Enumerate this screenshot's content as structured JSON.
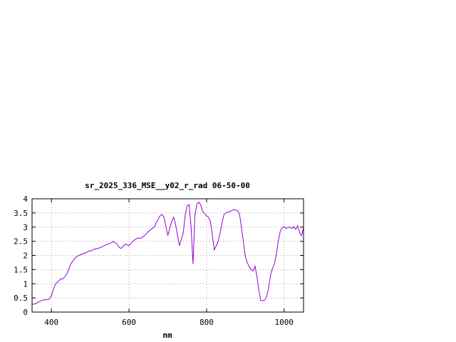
{
  "chart_data": {
    "type": "line",
    "title": "sr_2025_336_MSE__y02_r_rad 06-50-00",
    "xlabel": "nm",
    "ylabel": "",
    "xlim": [
      350,
      1050
    ],
    "ylim": [
      0,
      4
    ],
    "x_ticks": [
      400,
      600,
      800,
      1000
    ],
    "y_ticks": [
      0,
      0.5,
      1,
      1.5,
      2,
      2.5,
      3,
      3.5,
      4
    ],
    "x_tick_labels": [
      "400",
      "600",
      "800",
      "1000"
    ],
    "y_tick_labels": [
      "0",
      "0.5",
      "1",
      "1.5",
      "2",
      "2.5",
      "3",
      "3.5",
      "4"
    ],
    "grid": true,
    "line_color": "#9400d3",
    "series": [
      {
        "x": [
          350,
          360,
          370,
          380,
          390,
          395,
          400,
          405,
          410,
          420,
          425,
          430,
          440,
          450,
          460,
          470,
          480,
          490,
          495,
          500,
          510,
          520,
          530,
          540,
          550,
          555,
          560,
          570,
          575,
          580,
          590,
          600,
          610,
          620,
          625,
          630,
          640,
          650,
          660,
          665,
          670,
          680,
          685,
          690,
          700,
          705,
          710,
          715,
          720,
          730,
          740,
          745,
          750,
          755,
          760,
          765,
          770,
          775,
          780,
          785,
          790,
          800,
          805,
          810,
          815,
          820,
          830,
          835,
          840,
          845,
          850,
          860,
          870,
          880,
          885,
          890,
          900,
          905,
          910,
          915,
          920,
          925,
          930,
          935,
          940,
          950,
          955,
          960,
          965,
          970,
          975,
          980,
          985,
          990,
          995,
          1000,
          1005,
          1010,
          1015,
          1020,
          1025,
          1030,
          1035,
          1040,
          1045,
          1050
        ],
        "values": [
          0.27,
          0.3,
          0.38,
          0.43,
          0.44,
          0.47,
          0.58,
          0.8,
          0.98,
          1.12,
          1.18,
          1.17,
          1.35,
          1.7,
          1.9,
          2.0,
          2.05,
          2.1,
          2.15,
          2.15,
          2.22,
          2.25,
          2.3,
          2.37,
          2.42,
          2.45,
          2.5,
          2.38,
          2.28,
          2.25,
          2.4,
          2.35,
          2.5,
          2.6,
          2.62,
          2.6,
          2.7,
          2.85,
          2.95,
          3.0,
          3.15,
          3.4,
          3.45,
          3.35,
          2.7,
          2.95,
          3.2,
          3.35,
          3.1,
          2.35,
          2.8,
          3.45,
          3.75,
          3.8,
          3.0,
          1.7,
          3.4,
          3.82,
          3.88,
          3.78,
          3.55,
          3.4,
          3.35,
          3.2,
          2.7,
          2.2,
          2.5,
          2.8,
          3.15,
          3.45,
          3.5,
          3.55,
          3.62,
          3.58,
          3.45,
          3.0,
          1.95,
          1.75,
          1.6,
          1.5,
          1.45,
          1.62,
          1.25,
          0.75,
          0.4,
          0.42,
          0.55,
          0.85,
          1.3,
          1.55,
          1.7,
          2.05,
          2.5,
          2.85,
          2.98,
          3.02,
          2.95,
          2.98,
          3.0,
          2.95,
          3.02,
          2.92,
          3.05,
          2.8,
          2.7,
          2.98
        ]
      }
    ]
  }
}
